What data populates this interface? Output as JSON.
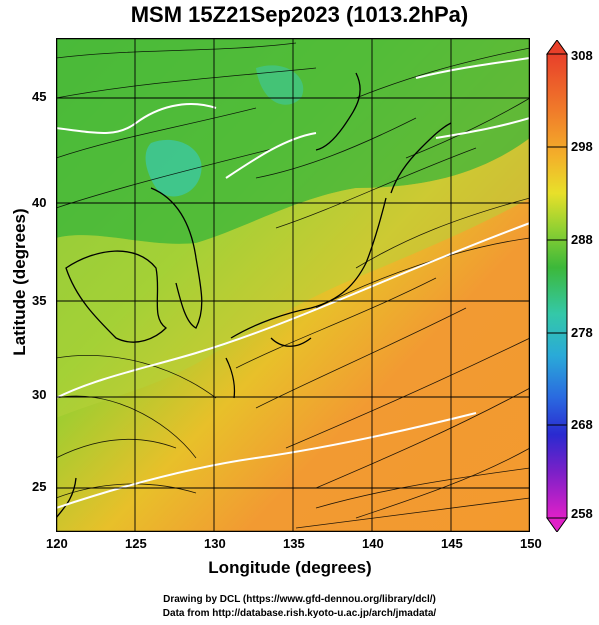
{
  "title": "MSM 15Z21Sep2023 (1013.2hPa)",
  "xaxis": {
    "label": "Longitude (degrees)",
    "ticks": [
      "120",
      "125",
      "130",
      "135",
      "140",
      "145",
      "150"
    ],
    "range": [
      120,
      150
    ]
  },
  "yaxis": {
    "label": "Latitude  (degrees)",
    "ticks": [
      "25",
      "30",
      "35",
      "40",
      "45"
    ],
    "range": [
      22.4,
      47.6
    ]
  },
  "colorbar": {
    "ticks": [
      "258",
      "268",
      "278",
      "288",
      "298",
      "308"
    ],
    "range": [
      258,
      308
    ]
  },
  "credits": {
    "drawing": "Drawing by DCL (https://www.gfd-dennou.org/library/dcl/)",
    "data": "Data from http://database.rish.kyoto-u.ac.jp/arch/jmadata/"
  },
  "colors": {
    "warm": "#f39a2e",
    "green": "#3fb93a",
    "cool": "#3cc8a0",
    "land": "#000000",
    "contour": "#ffffff"
  }
}
